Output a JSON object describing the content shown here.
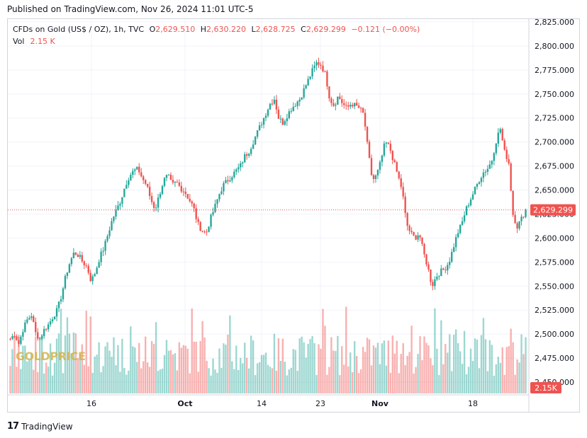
{
  "header": {
    "published": "Published on TradingView.com, Nov 26, 2024 11:01 UTC-5"
  },
  "legend": {
    "symbol": "CFDs on Gold (US$ / OZ), 1h, TVC",
    "o_label": "O",
    "o_value": "2,629.510",
    "h_label": "H",
    "h_value": "2,630.220",
    "l_label": "L",
    "l_value": "2,628.725",
    "c_label": "C",
    "c_value": "2,629.299",
    "change": "−0.121 (−0.00%)",
    "vol_label": "Vol",
    "vol_value": "2.15 K"
  },
  "footer": {
    "brand": "TradingView"
  },
  "watermark": "GOLDPRICE",
  "colors": {
    "up": "#26a69a",
    "down": "#ef5350",
    "price_line": "#ef5350",
    "grid": "#f0f3fa"
  },
  "chart_data": {
    "type": "candlestick",
    "x_tick_labels": [
      "16",
      "Oct",
      "14",
      "23",
      "Nov",
      "18"
    ],
    "y_tick_labels": [
      "2,825.000",
      "2,800.000",
      "2,775.000",
      "2,750.000",
      "2,725.000",
      "2,700.000",
      "2,675.000",
      "2,650.000",
      "2,625.000",
      "2,600.000",
      "2,575.000",
      "2,550.000",
      "2,525.000",
      "2,500.000",
      "2,475.000",
      "2,450.000"
    ],
    "ylim": [
      2450,
      2825
    ],
    "current_price": 2629.299,
    "current_price_label": "2,629.299",
    "volume_label": "2.15K",
    "approx_close_path": [
      2495,
      2500,
      2490,
      2505,
      2515,
      2520,
      2500,
      2495,
      2505,
      2510,
      2518,
      2525,
      2540,
      2560,
      2575,
      2585,
      2582,
      2575,
      2570,
      2555,
      2565,
      2580,
      2590,
      2605,
      2620,
      2630,
      2640,
      2655,
      2665,
      2670,
      2672,
      2662,
      2655,
      2640,
      2630,
      2645,
      2660,
      2665,
      2655,
      2658,
      2652,
      2648,
      2640,
      2632,
      2615,
      2608,
      2605,
      2620,
      2632,
      2645,
      2655,
      2660,
      2665,
      2670,
      2675,
      2685,
      2690,
      2700,
      2710,
      2720,
      2730,
      2740,
      2745,
      2725,
      2720,
      2728,
      2735,
      2740,
      2745,
      2755,
      2765,
      2775,
      2783,
      2780,
      2770,
      2745,
      2738,
      2748,
      2740,
      2735,
      2740,
      2738,
      2735,
      2728,
      2690,
      2660,
      2665,
      2680,
      2700,
      2695,
      2680,
      2665,
      2650,
      2615,
      2605,
      2600,
      2605,
      2585,
      2570,
      2550,
      2560,
      2565,
      2568,
      2575,
      2590,
      2605,
      2615,
      2630,
      2640,
      2650,
      2660,
      2668,
      2672,
      2680,
      2700,
      2715,
      2690,
      2680,
      2625,
      2612,
      2620,
      2629.3
    ]
  }
}
